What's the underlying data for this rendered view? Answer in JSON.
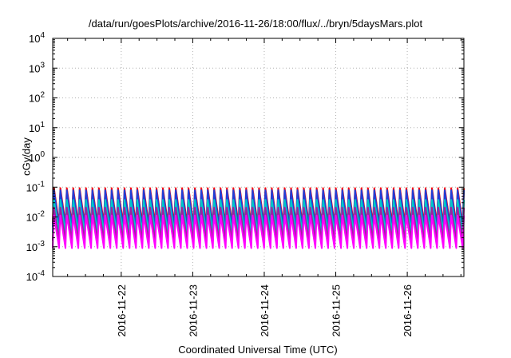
{
  "chart_data": {
    "type": "line",
    "title": "/data/run/goesPlots/archive/2016-11-26/18:00/flux/../bryn/5daysMars.plot",
    "xlabel": "Coordinated Universal Time (UTC)",
    "ylabel": "cGy/day",
    "y_scale": "log",
    "ylim": [
      0.0001,
      10000
    ],
    "y_tick_values": [
      0.0001,
      0.001,
      0.01,
      0.1,
      1,
      10,
      100,
      1000,
      10000
    ],
    "y_tick_labels": [
      {
        "base": "10",
        "exp": "-4"
      },
      {
        "base": "10",
        "exp": "-3"
      },
      {
        "base": "10",
        "exp": "-2"
      },
      {
        "base": "10",
        "exp": "-1"
      },
      {
        "base": "10",
        "exp": "0"
      },
      {
        "base": "10",
        "exp": "1"
      },
      {
        "base": "10",
        "exp": "2"
      },
      {
        "base": "10",
        "exp": "3"
      },
      {
        "base": "10",
        "exp": "4"
      }
    ],
    "xlim": [
      "2016-11-21T01:00",
      "2016-11-26T19:00"
    ],
    "x_tick_values": [
      "2016-11-22",
      "2016-11-23",
      "2016-11-24",
      "2016-11-25",
      "2016-11-26"
    ],
    "x_tick_labels": [
      "2016-11-22",
      "2016-11-23",
      "2016-11-24",
      "2016-11-25",
      "2016-11-26"
    ],
    "grid": true,
    "oscillation_period_hours": 2.15,
    "series": [
      {
        "color": "#ff0000",
        "peak": 0.1,
        "trough": 0.006
      },
      {
        "color": "#1f3fd8",
        "peak": 0.085,
        "trough": 0.0045
      },
      {
        "color": "#00c8c8",
        "peak": 0.04,
        "trough": 0.003
      },
      {
        "color": "#a020a0",
        "peak": 0.022,
        "trough": 0.0016
      },
      {
        "color": "#ff00ff",
        "peak": 0.012,
        "trough": 0.0009
      }
    ]
  }
}
